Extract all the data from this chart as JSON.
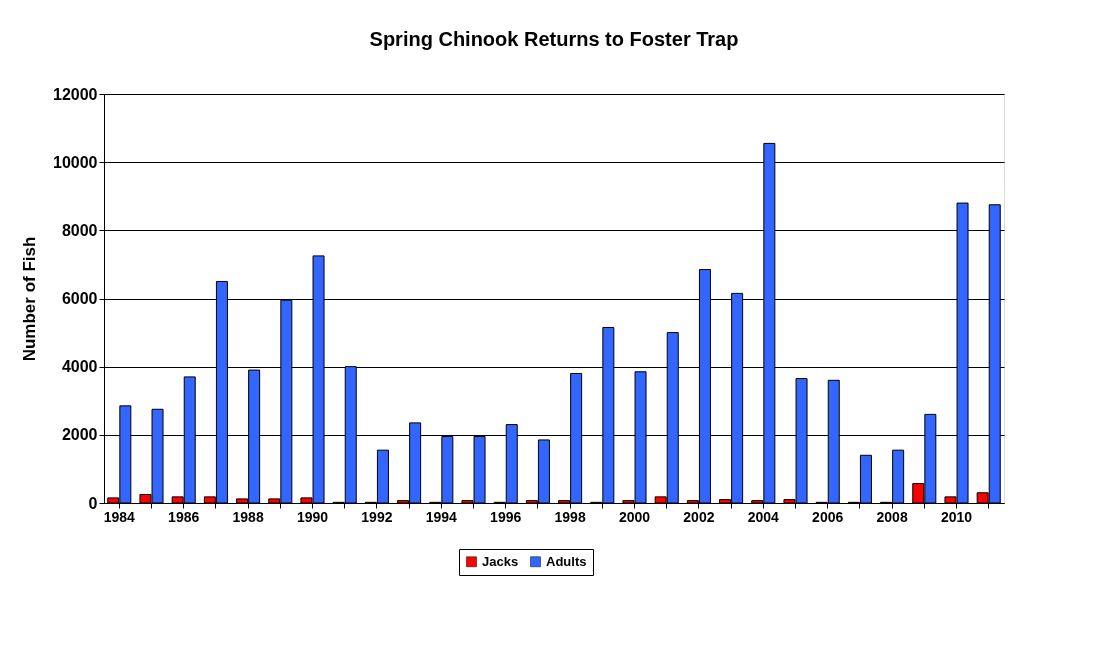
{
  "chart_data": {
    "type": "bar",
    "title": "Spring Chinook Returns to Foster Trap",
    "ylabel": "Number of Fish",
    "categories": [
      "1984",
      null,
      "1986",
      null,
      "1988",
      null,
      "1990",
      null,
      "1992",
      null,
      "1994",
      null,
      "1996",
      null,
      "1998",
      null,
      "2000",
      null,
      "2002",
      null,
      "2004",
      null,
      "2006",
      null,
      "2008",
      null,
      "2010",
      null
    ],
    "series": [
      {
        "name": "Jacks",
        "color": "#ff0000",
        "values": [
          150,
          250,
          180,
          180,
          120,
          120,
          150,
          20,
          20,
          70,
          20,
          70,
          20,
          70,
          70,
          20,
          70,
          180,
          70,
          100,
          70,
          100,
          20,
          20,
          20,
          570,
          180,
          300
        ]
      },
      {
        "name": "Adults",
        "color": "#3366ff",
        "values": [
          2850,
          2750,
          3700,
          6500,
          3900,
          5950,
          7250,
          4000,
          1550,
          2350,
          1950,
          1950,
          2300,
          1850,
          3800,
          5150,
          3850,
          5000,
          6850,
          6150,
          10550,
          3650,
          3600,
          1400,
          1550,
          2600,
          8800,
          8750
        ]
      }
    ],
    "ylim": [
      0,
      12000
    ],
    "yticks": [
      0,
      2000,
      4000,
      6000,
      8000,
      10000,
      12000
    ],
    "grid": "y",
    "legend": "bottom"
  }
}
